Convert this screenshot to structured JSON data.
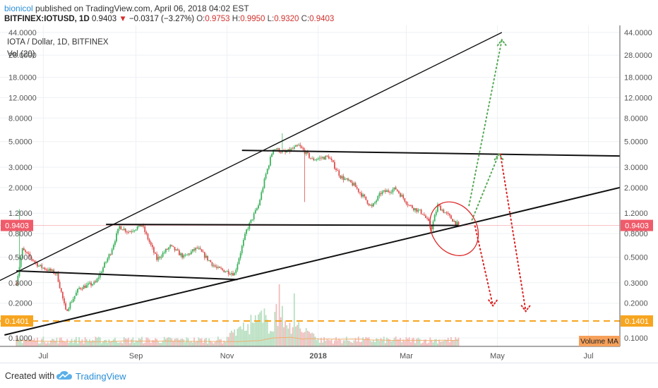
{
  "header": {
    "author": "bionicol",
    "published_text": "published on TradingView.com, April 06, 2018 04:02 EST",
    "symbol": "BITFINEX:IOTUSD, 1D",
    "last": "0.9403",
    "change": "−0.0317 (−3.27%)",
    "o_label": "O:",
    "o_value": "0.9753",
    "h_label": "H:",
    "h_value": "0.9950",
    "l_label": "L:",
    "l_value": "0.9320",
    "c_label": "C:",
    "c_value": "0.9403"
  },
  "legend": {
    "line1": "IOTA / Dollar, 1D, BITFINEX",
    "line2": "Vol (20)"
  },
  "footer": {
    "created_with": "Created with",
    "brand": "TradingView"
  },
  "colors": {
    "up": "#3cb35c",
    "down": "#e05050",
    "vol_up": "#b7dfc0",
    "vol_down": "#f2bcbc",
    "price_label": "#ef5b6a",
    "orange": "#f7a520",
    "vol_ma": "#f0b070",
    "green_dot": "#55aa55",
    "red_dot": "#dd2222",
    "ellipse": "#dd2222"
  },
  "chart_data": {
    "type": "candlestick",
    "y_scale": "log",
    "y_ticks": [
      {
        "value": 44,
        "label": "44.0000"
      },
      {
        "value": 28,
        "label": "28.0000"
      },
      {
        "value": 18,
        "label": "18.0000"
      },
      {
        "value": 12,
        "label": "12.0000"
      },
      {
        "value": 8,
        "label": "8.0000"
      },
      {
        "value": 5,
        "label": "5.0000"
      },
      {
        "value": 3,
        "label": "3.0000"
      },
      {
        "value": 2,
        "label": "2.0000"
      },
      {
        "value": 1.2,
        "label": "1.2000"
      },
      {
        "value": 0.8,
        "label": "0.8000"
      },
      {
        "value": 0.5,
        "label": "0.5000"
      },
      {
        "value": 0.3,
        "label": "0.3000"
      },
      {
        "value": 0.2,
        "label": "0.2000"
      },
      {
        "value": 0.1,
        "label": "0.1000"
      }
    ],
    "x_labels": [
      {
        "date": "2017-07-01",
        "label": "Jul"
      },
      {
        "date": "2017-09-01",
        "label": "Sep"
      },
      {
        "date": "2017-11-01",
        "label": "Nov"
      },
      {
        "date": "2018-01-01",
        "label": "2018"
      },
      {
        "date": "2018-03-01",
        "label": "Mar"
      },
      {
        "date": "2018-05-01",
        "label": "May"
      },
      {
        "date": "2018-07-01",
        "label": "Jul"
      }
    ],
    "x_range": [
      "2017-06-02",
      "2018-07-22"
    ],
    "price_levels": [
      {
        "value": 0.9403,
        "label": "0.9403",
        "style": "solid",
        "color": "#ef5b6a"
      },
      {
        "value": 0.1401,
        "label": "0.1401",
        "style": "dashed",
        "color": "#f7a520"
      }
    ],
    "trend_lines": [
      {
        "name": "upper-wedge-line",
        "from": [
          "2017-06-01",
          0.31
        ],
        "to": [
          "2018-05-04",
          44
        ]
      },
      {
        "name": "lower-support-line",
        "from": [
          "2017-06-05",
          0.106
        ],
        "to": [
          "2018-07-22",
          2.0
        ]
      },
      {
        "name": "july-resistance-line",
        "from": [
          "2017-06-13",
          0.38
        ],
        "to": [
          "2017-11-08",
          0.32
        ]
      },
      {
        "name": "mid-horizontal-line",
        "from": [
          "2017-08-12",
          0.96
        ],
        "to": [
          "2018-04-05",
          0.94
        ]
      },
      {
        "name": "top-horizontal-line",
        "from": [
          "2017-11-11",
          4.2
        ],
        "to": [
          "2018-07-22",
          3.75
        ]
      }
    ],
    "projections": [
      {
        "name": "green-projection-1",
        "color": "green",
        "points": [
          [
            "2018-04-12",
            1.4
          ],
          [
            "2018-05-04",
            38
          ]
        ]
      },
      {
        "name": "green-projection-2",
        "color": "green",
        "points": [
          [
            "2018-04-14",
            1.05
          ],
          [
            "2018-05-02",
            3.9
          ]
        ]
      },
      {
        "name": "red-projection-1",
        "color": "red",
        "points": [
          [
            "2018-04-16",
            0.93
          ],
          [
            "2018-04-28",
            0.19
          ]
        ]
      },
      {
        "name": "red-projection-2",
        "color": "red",
        "points": [
          [
            "2018-05-03",
            3.9
          ],
          [
            "2018-05-20",
            0.17
          ]
        ]
      }
    ],
    "ellipse": {
      "center": [
        "2018-04-02",
        0.85
      ],
      "span_days": 30,
      "y_top": 1.55,
      "y_bottom": 0.5
    },
    "volume_ma_label": "Volume MA",
    "candles_note": "Daily candles, generated as approximate path between observed pivots",
    "pivots": [
      [
        "2017-06-13",
        0.3
      ],
      [
        "2017-06-17",
        0.58
      ],
      [
        "2017-06-28",
        0.42
      ],
      [
        "2017-07-10",
        0.36
      ],
      [
        "2017-07-16",
        0.17
      ],
      [
        "2017-07-25",
        0.27
      ],
      [
        "2017-08-05",
        0.3
      ],
      [
        "2017-08-15",
        0.55
      ],
      [
        "2017-08-21",
        0.92
      ],
      [
        "2017-08-27",
        0.83
      ],
      [
        "2017-09-05",
        0.95
      ],
      [
        "2017-09-15",
        0.48
      ],
      [
        "2017-09-24",
        0.62
      ],
      [
        "2017-10-03",
        0.5
      ],
      [
        "2017-10-12",
        0.6
      ],
      [
        "2017-10-25",
        0.4
      ],
      [
        "2017-11-06",
        0.36
      ],
      [
        "2017-11-14",
        0.85
      ],
      [
        "2017-11-22",
        1.4
      ],
      [
        "2017-11-27",
        2.6
      ],
      [
        "2017-12-02",
        4.4
      ],
      [
        "2017-12-10",
        4.0
      ],
      [
        "2017-12-19",
        4.6
      ],
      [
        "2017-12-28",
        3.5
      ],
      [
        "2018-01-08",
        3.7
      ],
      [
        "2018-01-16",
        2.5
      ],
      [
        "2018-01-25",
        2.1
      ],
      [
        "2018-02-06",
        1.35
      ],
      [
        "2018-02-12",
        1.8
      ],
      [
        "2018-02-22",
        1.95
      ],
      [
        "2018-03-03",
        1.4
      ],
      [
        "2018-03-12",
        1.2
      ],
      [
        "2018-03-18",
        0.9
      ],
      [
        "2018-03-22",
        1.4
      ],
      [
        "2018-04-05",
        0.94
      ]
    ]
  }
}
